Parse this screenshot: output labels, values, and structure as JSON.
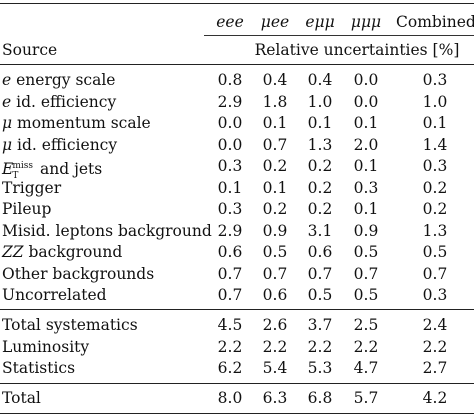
{
  "table": {
    "columns": [
      "eee",
      "μee",
      "eμμ",
      "μμμ",
      "Combined"
    ],
    "source_header": "Source",
    "span_header": "Relative uncertainties [%]",
    "rows": [
      {
        "label": "e energy scale",
        "values": [
          "0.8",
          "0.4",
          "0.4",
          "0.0",
          "0.3"
        ]
      },
      {
        "label": "e id. efficiency",
        "values": [
          "2.9",
          "1.8",
          "1.0",
          "0.0",
          "1.0"
        ]
      },
      {
        "label": "μ momentum scale",
        "values": [
          "0.0",
          "0.1",
          "0.1",
          "0.1",
          "0.1"
        ]
      },
      {
        "label": "μ id. efficiency",
        "values": [
          "0.0",
          "0.7",
          "1.3",
          "2.0",
          "1.4"
        ]
      },
      {
        "label": "E_T^miss and jets",
        "values": [
          "0.3",
          "0.2",
          "0.2",
          "0.1",
          "0.3"
        ]
      },
      {
        "label": "Trigger",
        "values": [
          "0.1",
          "0.1",
          "0.2",
          "0.3",
          "0.2"
        ]
      },
      {
        "label": "Pileup",
        "values": [
          "0.3",
          "0.2",
          "0.2",
          "0.1",
          "0.2"
        ]
      },
      {
        "label": "Misid. leptons background",
        "values": [
          "2.9",
          "0.9",
          "3.1",
          "0.9",
          "1.3"
        ]
      },
      {
        "label": "ZZ background",
        "values": [
          "0.6",
          "0.5",
          "0.6",
          "0.5",
          "0.5"
        ]
      },
      {
        "label": "Other backgrounds",
        "values": [
          "0.7",
          "0.7",
          "0.7",
          "0.7",
          "0.7"
        ]
      },
      {
        "label": "Uncorrelated",
        "values": [
          "0.7",
          "0.6",
          "0.5",
          "0.5",
          "0.3"
        ]
      }
    ],
    "summary_rows": [
      {
        "label": "Total systematics",
        "values": [
          "4.5",
          "2.6",
          "3.7",
          "2.5",
          "2.4"
        ]
      },
      {
        "label": "Luminosity",
        "values": [
          "2.2",
          "2.2",
          "2.2",
          "2.2",
          "2.2"
        ]
      },
      {
        "label": "Statistics",
        "values": [
          "6.2",
          "5.4",
          "5.3",
          "4.7",
          "2.7"
        ]
      }
    ],
    "total_row": {
      "label": "Total",
      "values": [
        "8.0",
        "6.3",
        "6.8",
        "5.7",
        "4.2"
      ]
    }
  }
}
